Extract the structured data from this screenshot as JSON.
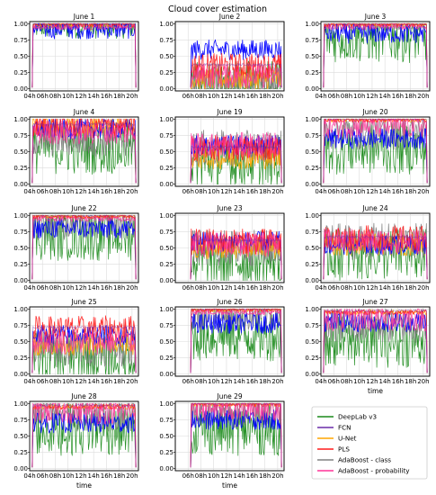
{
  "title": "Cloud cover estimation",
  "xlabel": "time",
  "chart_data": {
    "type": "line",
    "title": "Cloud cover estimation",
    "ylim": [
      0,
      1
    ],
    "yticks": [
      "0.00",
      "0.25",
      "0.50",
      "0.75",
      "1.00"
    ],
    "x_range_hours": [
      4,
      21
    ],
    "xticks": [
      "04h",
      "06h",
      "08h",
      "10h",
      "12h",
      "14h",
      "16h",
      "18h",
      "20h"
    ],
    "grid": true,
    "legend": "bottom-right",
    "series": [
      {
        "name": "DeepLab v3",
        "color": "#1a8a1a"
      },
      {
        "name": "FCN",
        "color": "#6a2ba8"
      },
      {
        "name": "U-Net",
        "color": "#ffa500"
      },
      {
        "name": "PLS",
        "color": "#ff1a1a"
      },
      {
        "name": "AdaBoost - class",
        "color": "#808080"
      },
      {
        "name": "AdaBoost - probability",
        "color": "#ff3399"
      }
    ],
    "panels": [
      {
        "label": "June 1",
        "x_start_tick": "04h",
        "series_levels": {
          "blue": 0.92,
          "green": 0.95,
          "red": 0.99,
          "gray": 0.97,
          "pink": 0.95,
          "orange": 0.98
        }
      },
      {
        "label": "June 2",
        "x_start_tick": "06h",
        "series_levels": {
          "blue": 0.6,
          "green": 0.05,
          "red": 0.35,
          "gray": 0.08,
          "pink": 0.2,
          "orange": 0.15
        }
      },
      {
        "label": "June 3",
        "x_start_tick": "04h",
        "series_levels": {
          "blue": 0.85,
          "green": 0.8,
          "red": 0.99,
          "gray": 0.95,
          "pink": 0.95,
          "orange": 0.99
        }
      },
      {
        "label": "June 4",
        "x_start_tick": "04h",
        "series_levels": {
          "blue": 0.85,
          "green": 0.55,
          "red": 0.9,
          "gray": 0.7,
          "pink": 0.8,
          "orange": 0.9
        }
      },
      {
        "label": "June 19",
        "x_start_tick": "06h",
        "series_levels": {
          "blue": 0.6,
          "green": 0.35,
          "red": 0.55,
          "gray": 0.55,
          "pink": 0.6,
          "orange": 0.4
        }
      },
      {
        "label": "June 20",
        "x_start_tick": "04h",
        "series_levels": {
          "blue": 0.7,
          "green": 0.55,
          "red": 0.99,
          "gray": 0.8,
          "pink": 0.9,
          "orange": 0.99
        }
      },
      {
        "label": "June 22",
        "x_start_tick": "04h",
        "series_levels": {
          "blue": 0.8,
          "green": 0.7,
          "red": 0.99,
          "gray": 0.9,
          "pink": 0.95,
          "orange": 0.99
        }
      },
      {
        "label": "June 23",
        "x_start_tick": "06h",
        "series_levels": {
          "blue": 0.6,
          "green": 0.3,
          "red": 0.6,
          "gray": 0.5,
          "pink": 0.55,
          "orange": 0.5
        }
      },
      {
        "label": "June 24",
        "x_start_tick": "04h",
        "series_levels": {
          "blue": 0.55,
          "green": 0.4,
          "red": 0.65,
          "gray": 0.6,
          "pink": 0.6,
          "orange": 0.55
        }
      },
      {
        "label": "June 25",
        "x_start_tick": "04h",
        "series_levels": {
          "blue": 0.6,
          "green": 0.25,
          "red": 0.7,
          "gray": 0.4,
          "pink": 0.5,
          "orange": 0.45
        }
      },
      {
        "label": "June 26",
        "x_start_tick": "06h",
        "series_levels": {
          "blue": 0.78,
          "green": 0.6,
          "red": 0.99,
          "gray": 0.93,
          "pink": 0.95,
          "orange": 0.99
        }
      },
      {
        "label": "June 27",
        "x_start_tick": "04h",
        "series_levels": {
          "blue": 0.8,
          "green": 0.5,
          "red": 0.95,
          "gray": 0.75,
          "pink": 0.85,
          "orange": 0.95
        }
      },
      {
        "label": "June 28",
        "x_start_tick": "04h",
        "series_levels": {
          "blue": 0.7,
          "green": 0.6,
          "red": 0.95,
          "gray": 0.85,
          "pink": 0.88,
          "orange": 0.95
        }
      },
      {
        "label": "June 29",
        "x_start_tick": "06h",
        "series_levels": {
          "blue": 0.75,
          "green": 0.6,
          "red": 0.99,
          "gray": 0.9,
          "pink": 0.93,
          "orange": 0.99
        }
      }
    ]
  }
}
